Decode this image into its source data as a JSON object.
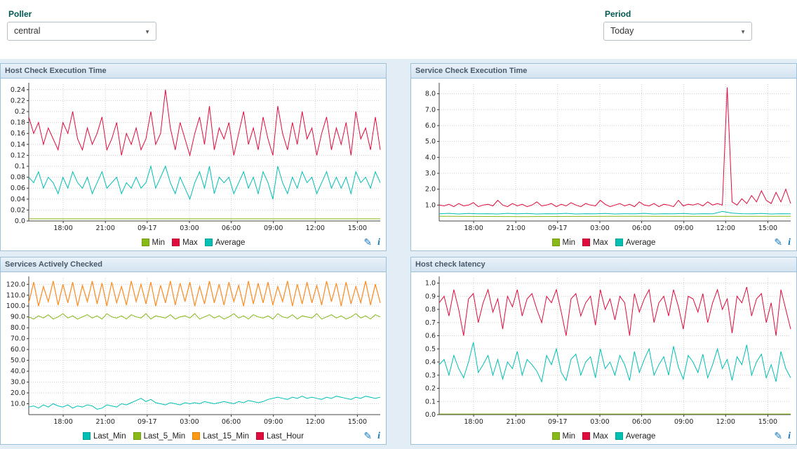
{
  "topbar": {
    "poller_label": "Poller",
    "poller_value": "central",
    "period_label": "Period",
    "period_value": "Today"
  },
  "panel_icons": {
    "edit": "✎",
    "info": "i"
  },
  "colors": {
    "label": "#00574f",
    "region_bg": "#e3edf5",
    "panel_border": "#9fc2da",
    "panel_header_text": "#47596a",
    "icon_blue": "#1779ba",
    "series_min_green": "#88b917",
    "series_max_red": "#e00b3d",
    "series_avg_teal": "#00bfb3",
    "series_orange": "#ff9913"
  },
  "chart_data": [
    {
      "type": "line",
      "title": "Host Check Execution Time",
      "ylim": [
        0,
        0.25
      ],
      "y_ticks": [
        {
          "v": 0.0,
          "label": "0.0"
        },
        {
          "v": 0.02,
          "label": "0.02"
        },
        {
          "v": 0.04,
          "label": "0.04"
        },
        {
          "v": 0.06,
          "label": "0.06"
        },
        {
          "v": 0.08,
          "label": "0.08"
        },
        {
          "v": 0.1,
          "label": "0.1"
        },
        {
          "v": 0.12,
          "label": "0.12"
        },
        {
          "v": 0.14,
          "label": "0.14"
        },
        {
          "v": 0.16,
          "label": "0.16"
        },
        {
          "v": 0.18,
          "label": "0.18"
        },
        {
          "v": 0.2,
          "label": "0.2"
        },
        {
          "v": 0.22,
          "label": "0.22"
        },
        {
          "v": 0.24,
          "label": "0.24"
        }
      ],
      "x_tick_labels": [
        "18:00",
        "21:00",
        "09-17",
        "03:00",
        "06:00",
        "09:00",
        "12:00",
        "15:00"
      ],
      "x_tick_pos": [
        0.098,
        0.218,
        0.337,
        0.457,
        0.576,
        0.696,
        0.815,
        0.935
      ],
      "series": [
        {
          "name": "Min",
          "color": "#88b917",
          "draw": 1,
          "values": [
            0.004,
            0.004
          ]
        },
        {
          "name": "Max",
          "color": "#e00b3d",
          "draw": 2,
          "values": [
            0.19,
            0.16,
            0.18,
            0.14,
            0.17,
            0.15,
            0.13,
            0.18,
            0.16,
            0.2,
            0.15,
            0.13,
            0.17,
            0.14,
            0.16,
            0.19,
            0.13,
            0.15,
            0.18,
            0.12,
            0.16,
            0.14,
            0.17,
            0.13,
            0.15,
            0.2,
            0.14,
            0.16,
            0.24,
            0.17,
            0.13,
            0.18,
            0.15,
            0.12,
            0.16,
            0.19,
            0.14,
            0.21,
            0.13,
            0.17,
            0.15,
            0.18,
            0.12,
            0.16,
            0.2,
            0.14,
            0.17,
            0.13,
            0.19,
            0.15,
            0.12,
            0.21,
            0.16,
            0.13,
            0.18,
            0.14,
            0.2,
            0.15,
            0.17,
            0.12,
            0.16,
            0.19,
            0.13,
            0.17,
            0.14,
            0.18,
            0.12,
            0.2,
            0.15,
            0.17,
            0.13,
            0.19,
            0.13
          ]
        },
        {
          "name": "Average",
          "color": "#00bfb3",
          "draw": 3,
          "values": [
            0.08,
            0.07,
            0.09,
            0.06,
            0.08,
            0.07,
            0.05,
            0.08,
            0.06,
            0.09,
            0.07,
            0.06,
            0.08,
            0.05,
            0.07,
            0.09,
            0.06,
            0.07,
            0.08,
            0.05,
            0.07,
            0.06,
            0.08,
            0.06,
            0.07,
            0.1,
            0.06,
            0.08,
            0.1,
            0.07,
            0.05,
            0.08,
            0.06,
            0.04,
            0.07,
            0.09,
            0.06,
            0.1,
            0.05,
            0.08,
            0.07,
            0.08,
            0.05,
            0.07,
            0.09,
            0.06,
            0.08,
            0.05,
            0.09,
            0.07,
            0.04,
            0.1,
            0.07,
            0.05,
            0.08,
            0.06,
            0.09,
            0.07,
            0.08,
            0.05,
            0.07,
            0.09,
            0.06,
            0.08,
            0.06,
            0.08,
            0.05,
            0.09,
            0.07,
            0.08,
            0.06,
            0.09,
            0.07
          ]
        }
      ]
    },
    {
      "type": "line",
      "title": "Service Check Execution Time",
      "ylim": [
        0,
        8.6
      ],
      "y_ticks": [
        {
          "v": 1,
          "label": "1.0"
        },
        {
          "v": 2,
          "label": "2.0"
        },
        {
          "v": 3,
          "label": "3.0"
        },
        {
          "v": 4,
          "label": "4.0"
        },
        {
          "v": 5,
          "label": "5.0"
        },
        {
          "v": 6,
          "label": "6.0"
        },
        {
          "v": 7,
          "label": "7.0"
        },
        {
          "v": 8,
          "label": "8.0"
        }
      ],
      "x_tick_labels": [
        "18:00",
        "21:00",
        "09-17",
        "03:00",
        "06:00",
        "09:00",
        "12:00",
        "15:00"
      ],
      "x_tick_pos": [
        0.098,
        0.218,
        0.337,
        0.457,
        0.576,
        0.696,
        0.815,
        0.935
      ],
      "series": [
        {
          "name": "Min",
          "color": "#88b917",
          "draw": 1,
          "values": [
            0.3,
            0.28,
            0.3,
            0.29,
            0.3
          ]
        },
        {
          "name": "Max",
          "color": "#e00b3d",
          "draw": 2,
          "values": [
            1.0,
            0.95,
            1.05,
            0.9,
            1.1,
            0.95,
            1.0,
            1.15,
            0.9,
            1.0,
            1.05,
            0.95,
            1.3,
            1.0,
            0.9,
            1.1,
            0.95,
            1.05,
            0.9,
            1.0,
            1.2,
            0.95,
            1.0,
            1.1,
            0.9,
            1.05,
            0.95,
            1.15,
            1.0,
            0.9,
            1.1,
            1.0,
            0.95,
            1.3,
            1.05,
            0.9,
            1.0,
            1.1,
            0.95,
            1.05,
            0.9,
            1.2,
            1.0,
            0.95,
            1.1,
            0.9,
            1.05,
            1.0,
            0.9,
            1.3,
            0.95,
            1.05,
            1.0,
            1.1,
            0.95,
            1.2,
            1.0,
            1.1,
            1.0,
            8.4,
            1.2,
            1.0,
            1.4,
            1.1,
            1.6,
            1.2,
            1.9,
            1.3,
            1.1,
            1.8,
            1.2,
            2.0,
            1.1
          ]
        },
        {
          "name": "Average",
          "color": "#00bfb3",
          "draw": 3,
          "values": [
            0.45,
            0.48,
            0.44,
            0.47,
            0.45,
            0.46,
            0.44,
            0.48,
            0.45,
            0.47,
            0.44,
            0.46,
            0.45,
            0.48,
            0.44,
            0.46,
            0.45,
            0.47,
            0.44,
            0.46,
            0.45,
            0.48,
            0.44,
            0.46,
            0.45,
            0.47,
            0.44,
            0.46,
            0.45,
            0.6,
            0.5,
            0.46,
            0.45,
            0.47,
            0.44,
            0.46,
            0.45
          ]
        }
      ]
    },
    {
      "type": "line",
      "title": "Services Actively Checked",
      "ylim": [
        0,
        126
      ],
      "y_ticks": [
        {
          "v": 10,
          "label": "10.0"
        },
        {
          "v": 20,
          "label": "20.0"
        },
        {
          "v": 30,
          "label": "30.0"
        },
        {
          "v": 40,
          "label": "40.0"
        },
        {
          "v": 50,
          "label": "50.0"
        },
        {
          "v": 60,
          "label": "60.0"
        },
        {
          "v": 70,
          "label": "70.0"
        },
        {
          "v": 80,
          "label": "80.0"
        },
        {
          "v": 90,
          "label": "90.0"
        },
        {
          "v": 100,
          "label": "100.0"
        },
        {
          "v": 110,
          "label": "110.0"
        },
        {
          "v": 120,
          "label": "120.0"
        }
      ],
      "x_tick_labels": [
        "18:00",
        "21:00",
        "09-17",
        "03:00",
        "06:00",
        "09:00",
        "12:00",
        "15:00"
      ],
      "x_tick_pos": [
        0.098,
        0.218,
        0.337,
        0.457,
        0.576,
        0.696,
        0.815,
        0.935
      ],
      "series": [
        {
          "name": "Last_Min",
          "color": "#00bfb3",
          "draw": 4,
          "values": [
            7,
            8,
            6,
            9,
            7,
            10,
            8,
            7,
            9,
            6,
            8,
            7,
            9,
            8,
            5,
            6,
            9,
            8,
            7,
            10,
            9,
            11,
            13,
            15,
            12,
            14,
            11,
            10,
            9,
            11,
            10,
            9,
            11,
            10,
            11,
            10,
            12,
            11,
            10,
            11,
            12,
            11,
            10,
            12,
            11,
            13,
            12,
            11,
            12,
            14,
            15,
            16,
            15,
            14,
            16,
            15,
            17,
            15,
            16,
            15,
            14,
            16,
            15,
            17,
            16,
            15,
            14,
            16,
            15,
            17,
            16,
            15,
            16
          ]
        },
        {
          "name": "Last_5_Min",
          "color": "#88b917",
          "draw": 3,
          "values": [
            90,
            88,
            91,
            89,
            92,
            88,
            90,
            93,
            89,
            91,
            88,
            90,
            92,
            89,
            91,
            88,
            93,
            90,
            89,
            91,
            88,
            92,
            90,
            89,
            93,
            88,
            91,
            90,
            89,
            92,
            88,
            90,
            91,
            89,
            93,
            88,
            90,
            92,
            89,
            91,
            88,
            90,
            93,
            89,
            91,
            88,
            92,
            90,
            89,
            91,
            88,
            93,
            90,
            89,
            92,
            88,
            91,
            90,
            89,
            93,
            88,
            90,
            92,
            89,
            91,
            88,
            90,
            93,
            89,
            91,
            88,
            92,
            90
          ]
        },
        {
          "name": "Last_15_Min",
          "color": "#ff9913",
          "draw": 2,
          "values": [
            103,
            122,
            100,
            118,
            104,
            123,
            101,
            120,
            103,
            122,
            100,
            119,
            104,
            123,
            102,
            121,
            100,
            122,
            103,
            118,
            101,
            123,
            104,
            120,
            102,
            122,
            100,
            119,
            103,
            123,
            101,
            121,
            104,
            122,
            100,
            118,
            102,
            123,
            103,
            120,
            101,
            122,
            104,
            119,
            100,
            123,
            102,
            121,
            103,
            122,
            101,
            118,
            104,
            123,
            100,
            120,
            102,
            122,
            103,
            119,
            101,
            123,
            104,
            121,
            100,
            122,
            102,
            118,
            103,
            123,
            101,
            120,
            103
          ]
        },
        {
          "name": "Last_Hour",
          "color": "#e00b3d",
          "draw": 1,
          "values": [
            103,
            122,
            100,
            118,
            104,
            123,
            101,
            120,
            103,
            122,
            100,
            119,
            104,
            123,
            102,
            121,
            100,
            122,
            103,
            118,
            101,
            123,
            104,
            120,
            102,
            122,
            100,
            119,
            103,
            123,
            101,
            121,
            104,
            122,
            100,
            118,
            102,
            123,
            103,
            120,
            101,
            122,
            104,
            119,
            100,
            123,
            102,
            121,
            103,
            122,
            101,
            118,
            104,
            123,
            100,
            120,
            102,
            122,
            103,
            119,
            101,
            123,
            104,
            121,
            100,
            122,
            102,
            118,
            103,
            123,
            101,
            120,
            103
          ]
        }
      ]
    },
    {
      "type": "line",
      "title": "Host check latency",
      "ylim": [
        0,
        1.04
      ],
      "y_ticks": [
        {
          "v": 0.0,
          "label": "0.0"
        },
        {
          "v": 0.1,
          "label": "0.1"
        },
        {
          "v": 0.2,
          "label": "0.2"
        },
        {
          "v": 0.3,
          "label": "0.3"
        },
        {
          "v": 0.4,
          "label": "0.4"
        },
        {
          "v": 0.5,
          "label": "0.5"
        },
        {
          "v": 0.6,
          "label": "0.6"
        },
        {
          "v": 0.7,
          "label": "0.7"
        },
        {
          "v": 0.8,
          "label": "0.8"
        },
        {
          "v": 0.9,
          "label": "0.9"
        },
        {
          "v": 1.0,
          "label": "1.0"
        }
      ],
      "x_tick_labels": [
        "18:00",
        "21:00",
        "09-17",
        "03:00",
        "06:00",
        "09:00",
        "12:00",
        "15:00"
      ],
      "x_tick_pos": [
        0.098,
        0.218,
        0.337,
        0.457,
        0.576,
        0.696,
        0.815,
        0.935
      ],
      "series": [
        {
          "name": "Min",
          "color": "#88b917",
          "draw": 1,
          "values": [
            0.005,
            0.005
          ]
        },
        {
          "name": "Max",
          "color": "#e00b3d",
          "draw": 2,
          "values": [
            0.85,
            0.9,
            0.75,
            0.95,
            0.8,
            0.6,
            0.88,
            0.92,
            0.7,
            0.85,
            0.95,
            0.78,
            0.88,
            0.65,
            0.9,
            0.82,
            0.95,
            0.75,
            0.88,
            0.92,
            0.8,
            0.7,
            0.9,
            0.85,
            0.95,
            0.78,
            0.6,
            0.88,
            0.92,
            0.75,
            0.85,
            0.9,
            0.68,
            0.95,
            0.8,
            0.88,
            0.72,
            0.9,
            0.85,
            0.6,
            0.92,
            0.78,
            0.88,
            0.95,
            0.7,
            0.85,
            0.9,
            0.75,
            0.95,
            0.82,
            0.65,
            0.9,
            0.88,
            0.78,
            0.92,
            0.7,
            0.85,
            0.95,
            0.8,
            0.88,
            0.62,
            0.9,
            0.85,
            0.97,
            0.75,
            0.88,
            0.92,
            0.7,
            0.85,
            0.6,
            0.95,
            0.8,
            0.65
          ]
        },
        {
          "name": "Average",
          "color": "#00bfb3",
          "draw": 3,
          "values": [
            0.38,
            0.42,
            0.3,
            0.45,
            0.35,
            0.28,
            0.4,
            0.55,
            0.32,
            0.38,
            0.45,
            0.3,
            0.42,
            0.27,
            0.4,
            0.35,
            0.48,
            0.3,
            0.42,
            0.38,
            0.33,
            0.25,
            0.45,
            0.38,
            0.5,
            0.32,
            0.26,
            0.42,
            0.46,
            0.3,
            0.4,
            0.44,
            0.28,
            0.5,
            0.35,
            0.4,
            0.3,
            0.45,
            0.38,
            0.26,
            0.48,
            0.32,
            0.42,
            0.5,
            0.3,
            0.38,
            0.44,
            0.3,
            0.52,
            0.36,
            0.27,
            0.45,
            0.4,
            0.32,
            0.46,
            0.28,
            0.38,
            0.5,
            0.35,
            0.42,
            0.26,
            0.44,
            0.38,
            0.53,
            0.3,
            0.4,
            0.46,
            0.28,
            0.38,
            0.25,
            0.48,
            0.35,
            0.28
          ]
        }
      ]
    }
  ]
}
